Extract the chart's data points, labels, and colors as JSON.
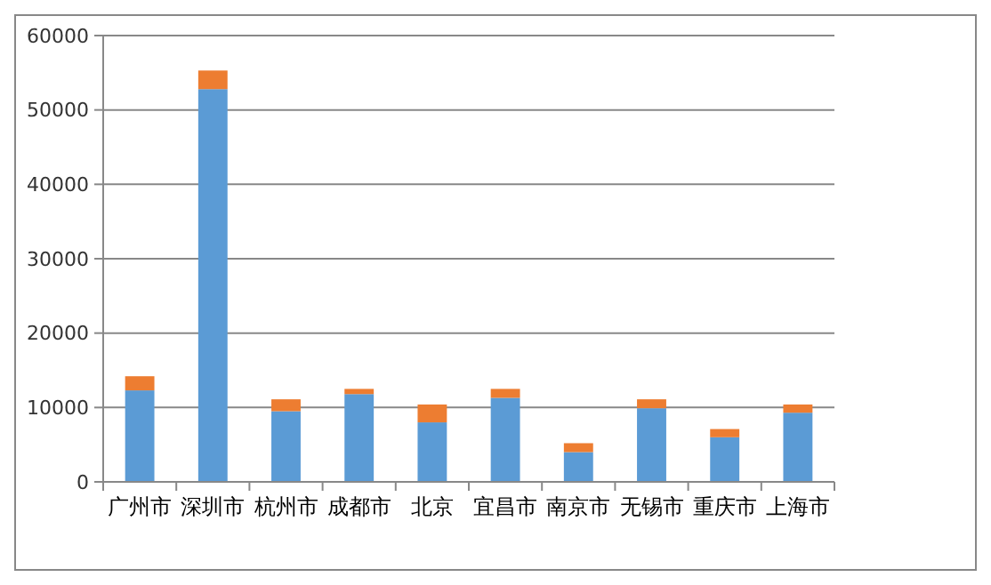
{
  "chart_data": {
    "type": "bar",
    "stacked": true,
    "categories": [
      "广州市",
      "深圳市",
      "杭州市",
      "成都市",
      "北京",
      "宜昌市",
      "南京市",
      "无锡市",
      "重庆市",
      "上海市"
    ],
    "series": [
      {
        "color": "#5b9bd5",
        "values": [
          12300,
          52800,
          9500,
          11800,
          8000,
          11300,
          4000,
          9900,
          6000,
          9300
        ]
      },
      {
        "color": "#ed7d31",
        "values": [
          1900,
          2500,
          1600,
          700,
          2400,
          1200,
          1200,
          1200,
          1100,
          1100
        ]
      }
    ],
    "ylim": [
      0,
      60000
    ],
    "yticks": [
      0,
      10000,
      20000,
      30000,
      40000,
      50000,
      60000
    ],
    "grid": "y"
  }
}
